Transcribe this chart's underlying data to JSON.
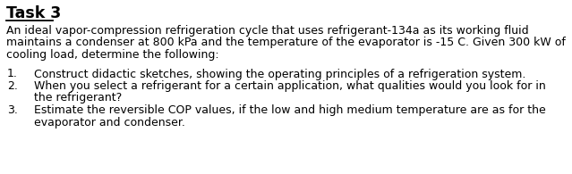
{
  "title": "Task 3",
  "background_color": "#ffffff",
  "text_color": "#000000",
  "body_line1": "An ideal vapor-compression refrigeration cycle that uses refrigerant-134a as its working fluid",
  "body_line2": "maintains a condenser at 800 kPa and the temperature of the evaporator is -15 C. Given 300 kW of",
  "body_line3": "cooling load, determine the following:",
  "item1_line1": "Construct didactic sketches, showing the operating principles of a refrigeration system.",
  "item2_line1": "When you select a refrigerant for a certain application, what qualities would you look for in",
  "item2_line2": "the refrigerant?",
  "item3_line1": "Estimate the reversible COP values, if the low and high medium temperature are as for the",
  "item3_line2": "evaporator and condenser.",
  "title_fontsize": 12.5,
  "body_fontsize": 9.0,
  "figwidth": 6.39,
  "figheight": 1.95,
  "dpi": 100
}
